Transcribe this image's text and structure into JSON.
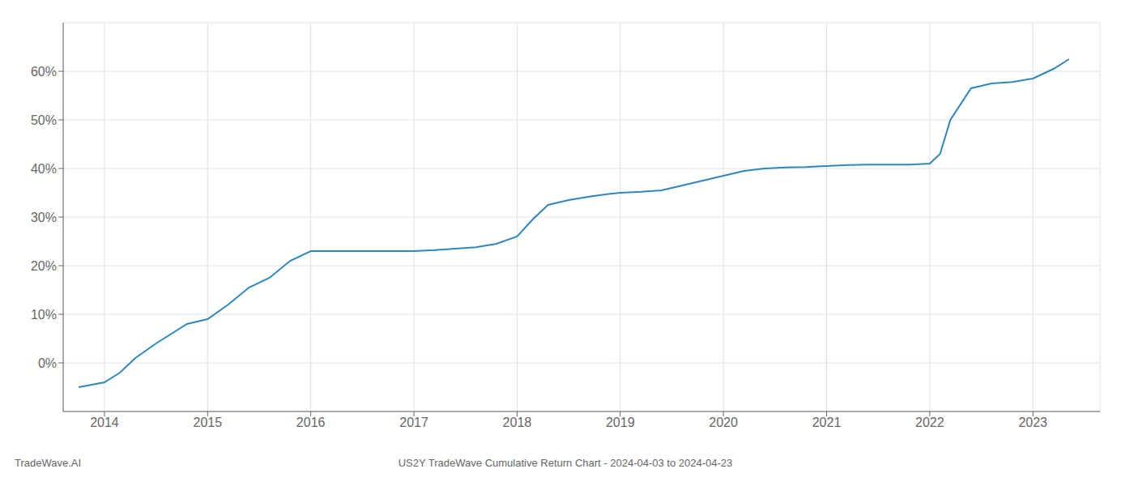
{
  "chart_data": {
    "type": "line",
    "title": "US2Y TradeWave Cumulative Return Chart - 2024-04-03 to 2024-04-23",
    "annotations": [
      "TradeWave.AI"
    ],
    "x": [
      2013.75,
      2014.0,
      2014.15,
      2014.3,
      2014.5,
      2014.65,
      2014.8,
      2015.0,
      2015.2,
      2015.4,
      2015.6,
      2015.8,
      2016.0,
      2016.2,
      2016.4,
      2016.6,
      2016.8,
      2017.0,
      2017.2,
      2017.4,
      2017.6,
      2017.8,
      2018.0,
      2018.15,
      2018.3,
      2018.5,
      2018.7,
      2018.9,
      2019.0,
      2019.2,
      2019.4,
      2019.6,
      2019.8,
      2020.0,
      2020.2,
      2020.4,
      2020.6,
      2020.8,
      2021.0,
      2021.2,
      2021.4,
      2021.6,
      2021.8,
      2022.0,
      2022.1,
      2022.2,
      2022.4,
      2022.6,
      2022.8,
      2023.0,
      2023.2,
      2023.35
    ],
    "values": [
      -0.05,
      -0.04,
      -0.02,
      0.01,
      0.04,
      0.06,
      0.08,
      0.09,
      0.12,
      0.155,
      0.175,
      0.21,
      0.23,
      0.23,
      0.23,
      0.23,
      0.23,
      0.23,
      0.232,
      0.235,
      0.238,
      0.245,
      0.26,
      0.295,
      0.325,
      0.335,
      0.342,
      0.348,
      0.35,
      0.352,
      0.355,
      0.365,
      0.375,
      0.385,
      0.395,
      0.4,
      0.402,
      0.403,
      0.405,
      0.407,
      0.408,
      0.408,
      0.408,
      0.41,
      0.43,
      0.5,
      0.565,
      0.575,
      0.578,
      0.585,
      0.605,
      0.625
    ],
    "color": "#2e86c1",
    "xlim": [
      2013.6,
      2023.65
    ],
    "xticks": [
      2014,
      2015,
      2016,
      2017,
      2018,
      2019,
      2020,
      2021,
      2022,
      2023
    ],
    "ylim": [
      -0.1,
      0.7
    ],
    "yticks": [
      {
        "value": 0.0,
        "label": "0%"
      },
      {
        "value": 0.1,
        "label": "10%"
      },
      {
        "value": 0.2,
        "label": "20%"
      },
      {
        "value": 0.3,
        "label": "30%"
      },
      {
        "value": 0.4,
        "label": "40%"
      },
      {
        "value": 0.5,
        "label": "50%"
      },
      {
        "value": 0.6,
        "label": "60%"
      }
    ],
    "grid": true
  }
}
